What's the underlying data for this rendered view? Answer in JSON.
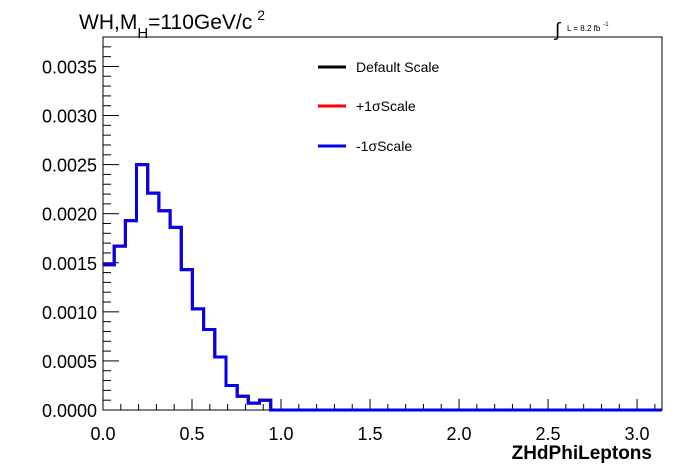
{
  "chart_data": {
    "type": "step-histogram",
    "title": "WH,M",
    "title_subscript": "H",
    "title_rest": "=110GeV/c",
    "title_superscript": "2",
    "lumi_integral": "∫",
    "lumi_text": "L = 8.2 fb",
    "lumi_superscript": "-1",
    "xlabel": "ZHdPhiLeptons",
    "ylabel": "",
    "xlim": [
      0.0,
      3.14
    ],
    "ylim": [
      0.0,
      0.0038
    ],
    "x_ticks": [
      "0.0",
      "0.5",
      "1.0",
      "1.5",
      "2.0",
      "2.5",
      "3.0"
    ],
    "y_ticks": [
      "0.0000",
      "0.0005",
      "0.0010",
      "0.0015",
      "0.0020",
      "0.0025",
      "0.0030",
      "0.0035"
    ],
    "bin_width": 0.0628,
    "legend_position": "top-center",
    "series": [
      {
        "name": "Default Scale",
        "color": "#000000",
        "values": [
          0.00148,
          0.00167,
          0.00193,
          0.0025,
          0.00221,
          0.00203,
          0.00186,
          0.00143,
          0.00103,
          0.00082,
          0.00054,
          0.00025,
          0.00014,
          7e-05,
          0.0001,
          0.0,
          0.0,
          0.0,
          0.0,
          0.0,
          0.0,
          0.0,
          0.0,
          0.0,
          0.0,
          0.0,
          0.0,
          0.0,
          0.0,
          0.0,
          0.0,
          0.0,
          0.0,
          0.0,
          0.0,
          0.0,
          0.0,
          0.0,
          0.0,
          0.0,
          0.0,
          0.0,
          0.0,
          0.0,
          0.0,
          0.0,
          0.0,
          0.0,
          0.0,
          0.0
        ]
      },
      {
        "name": "+1σScale",
        "color": "#ff0000",
        "values": [
          0.00148,
          0.00167,
          0.00193,
          0.0025,
          0.00221,
          0.00203,
          0.00186,
          0.00143,
          0.00103,
          0.00082,
          0.00054,
          0.00025,
          0.00014,
          7e-05,
          0.0001,
          0.0,
          0.0,
          0.0,
          0.0,
          0.0,
          0.0,
          0.0,
          0.0,
          0.0,
          0.0,
          0.0,
          0.0,
          0.0,
          0.0,
          0.0,
          0.0,
          0.0,
          0.0,
          0.0,
          0.0,
          0.0,
          0.0,
          0.0,
          0.0,
          0.0,
          0.0,
          0.0,
          0.0,
          0.0,
          0.0,
          0.0,
          0.0,
          0.0,
          0.0,
          0.0
        ]
      },
      {
        "name": "-1σScale",
        "color": "#0000ee",
        "values": [
          0.00148,
          0.00167,
          0.00193,
          0.0025,
          0.00221,
          0.00203,
          0.00186,
          0.00143,
          0.00103,
          0.00082,
          0.00054,
          0.00025,
          0.00014,
          7e-05,
          0.0001,
          0.0,
          0.0,
          0.0,
          0.0,
          0.0,
          0.0,
          0.0,
          0.0,
          0.0,
          0.0,
          0.0,
          0.0,
          0.0,
          0.0,
          0.0,
          0.0,
          0.0,
          0.0,
          0.0,
          0.0,
          0.0,
          0.0,
          0.0,
          0.0,
          0.0,
          0.0,
          0.0,
          0.0,
          0.0,
          0.0,
          0.0,
          0.0,
          0.0,
          0.0,
          0.0
        ]
      }
    ]
  }
}
